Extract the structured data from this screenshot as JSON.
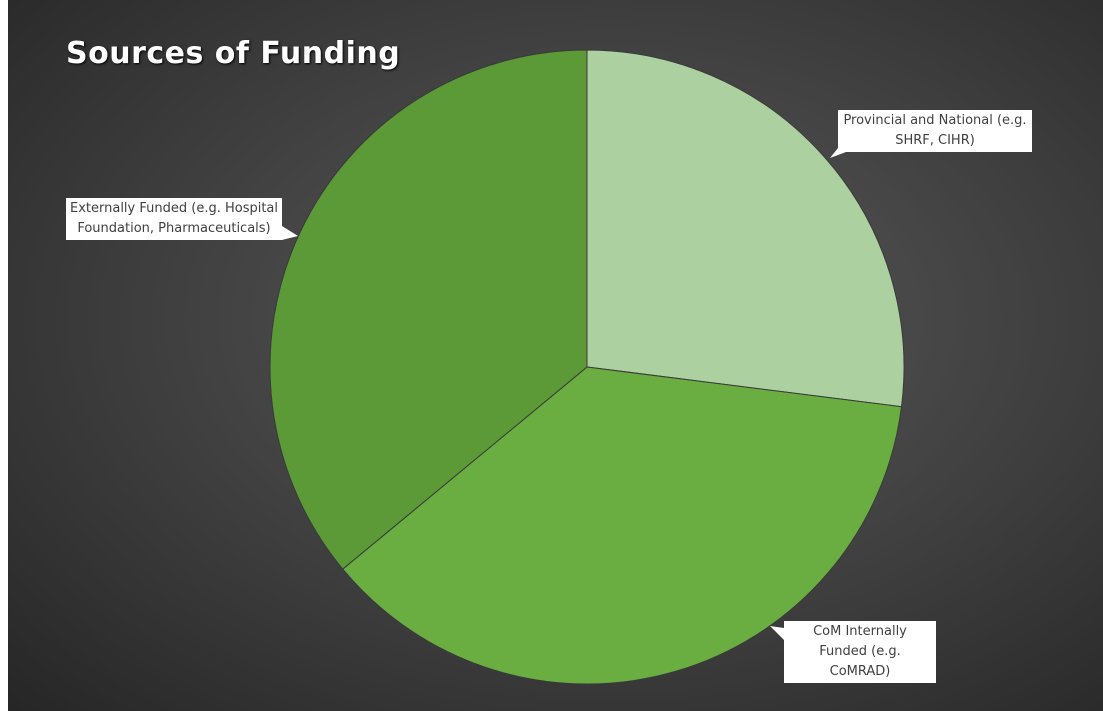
{
  "chart_data": {
    "type": "pie",
    "title": "Sources of Funding",
    "categories": [
      "Provincial and National (e.g. SHRF, CIHR)",
      "CoM Internally Funded (e.g. CoMRAD)",
      "Externally Funded (e.g. Hospital Foundation,  Pharmaceuticals)"
    ],
    "values": [
      27,
      37,
      36
    ],
    "colors": [
      "#add0a0",
      "#6aad40",
      "#5b9a37"
    ]
  }
}
